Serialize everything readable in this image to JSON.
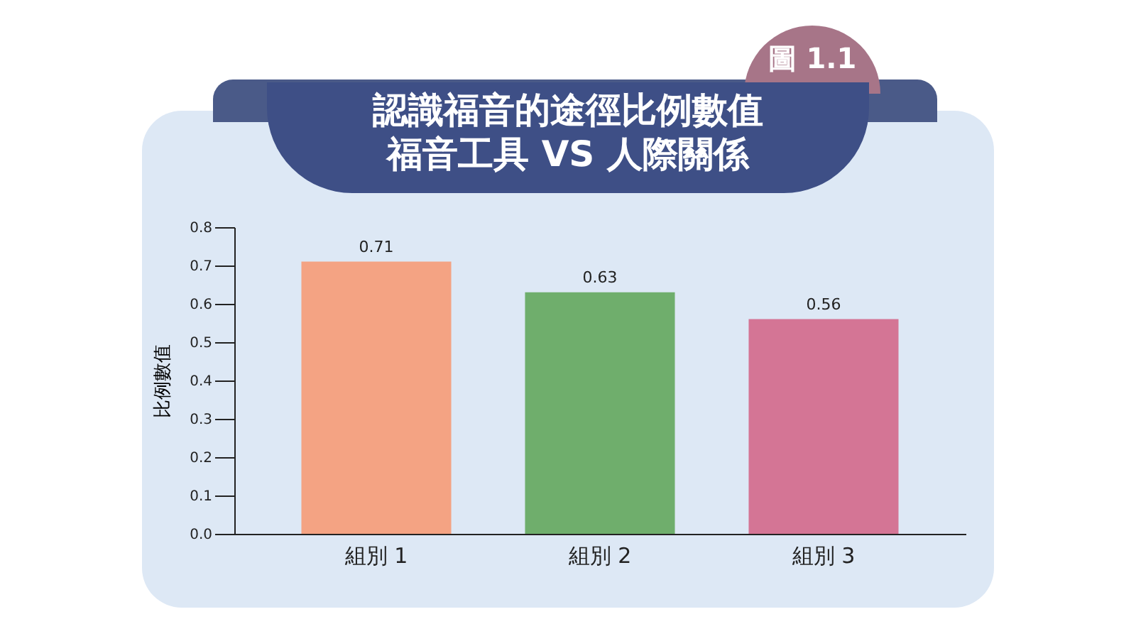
{
  "chart_data": {
    "type": "bar",
    "title": "認識福音的途徑比例數值",
    "subtitle": "福音工具 VS 人際關係",
    "ylabel": "比例數值",
    "annotations": [
      "圖 1.1"
    ],
    "categories": [
      "組別 1",
      "組別 2",
      "組別 3"
    ],
    "values": [
      0.71,
      0.63,
      0.56
    ],
    "colors": [
      "#f4a383",
      "#6fae6c",
      "#d47595"
    ],
    "ylim": [
      0,
      0.8
    ],
    "yticks": [
      {
        "value": 0,
        "label": "0.0"
      },
      0.1,
      0.2,
      0.3,
      0.4,
      0.5,
      0.6,
      0.7,
      0.8
    ],
    "data_labels": true
  }
}
